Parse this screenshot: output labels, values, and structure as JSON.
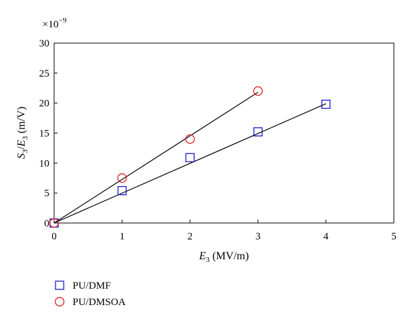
{
  "chart_data": {
    "type": "scatter",
    "xlabel": {
      "symbol": "E",
      "sub": "3",
      "unit": "(MV/m)"
    },
    "ylabel": {
      "symbol_num": "S",
      "sub_num": "3",
      "slash": "/",
      "symbol_den": "E",
      "sub_den": "3",
      "unit": "(m/V)"
    },
    "y_multiplier": {
      "prefix": "×10",
      "exponent": "−9"
    },
    "xlim": [
      0,
      5
    ],
    "ylim": [
      0,
      30
    ],
    "xticks": [
      0,
      1,
      2,
      3,
      4,
      5
    ],
    "yticks": [
      0,
      5,
      10,
      15,
      20,
      25,
      30
    ],
    "grid": false,
    "legend_position": "bottom-left, below plot",
    "series": [
      {
        "name": "PU/DMF",
        "marker": "square",
        "color": "#1a1acc",
        "x": [
          0,
          1,
          2,
          3,
          4
        ],
        "y": [
          0,
          5.4,
          10.9,
          15.2,
          19.8
        ],
        "fit": {
          "x": [
            0,
            4
          ],
          "y": [
            0,
            19.9
          ]
        }
      },
      {
        "name": "PU/DMSOA",
        "marker": "circle",
        "color": "#dd1f1f",
        "x": [
          0,
          1,
          2,
          3
        ],
        "y": [
          0,
          7.5,
          14.0,
          22.0
        ],
        "fit": {
          "x": [
            0,
            3
          ],
          "y": [
            0,
            21.8
          ]
        }
      }
    ]
  }
}
